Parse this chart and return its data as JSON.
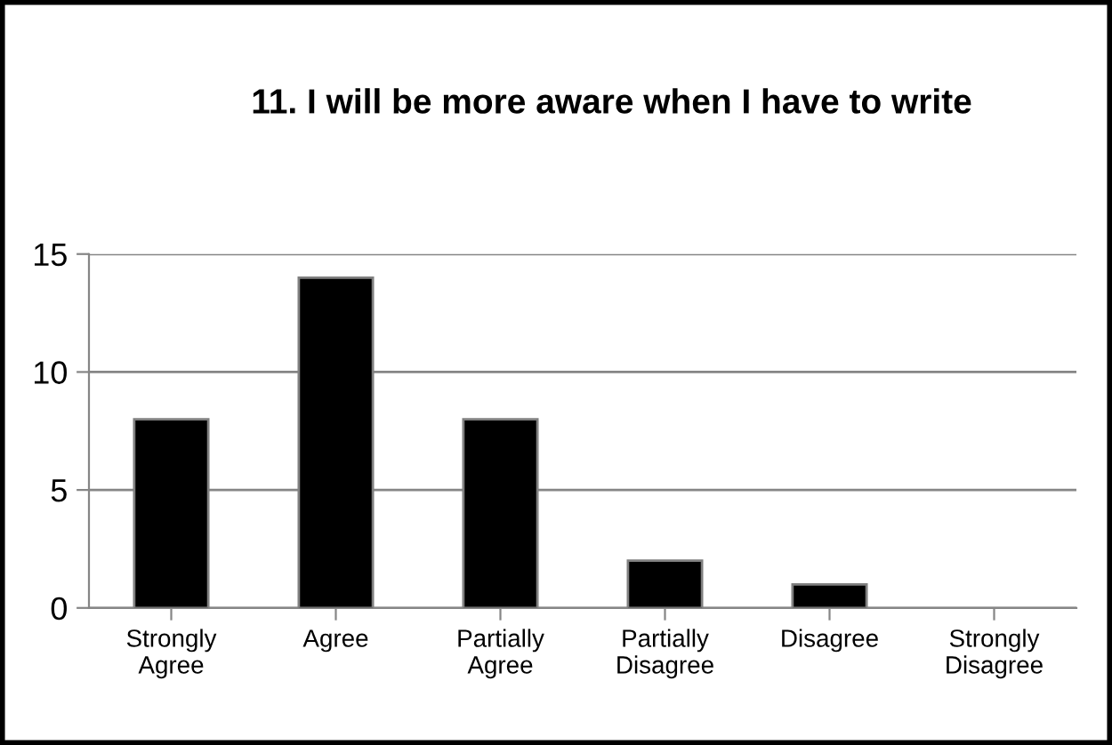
{
  "chart_data": {
    "type": "bar",
    "title": "11. I will be more aware when I have to write",
    "categories": [
      "Strongly\nAgree",
      "Agree",
      "Partially\nAgree",
      "Partially\nDisagree",
      "Disagree",
      "Strongly\nDisagree"
    ],
    "values": [
      8,
      14,
      8,
      2,
      1,
      0
    ],
    "color": "#000000",
    "ylim": [
      0,
      15
    ],
    "yticks": [
      0,
      5,
      10,
      15
    ],
    "grid": "y",
    "legend": false
  }
}
